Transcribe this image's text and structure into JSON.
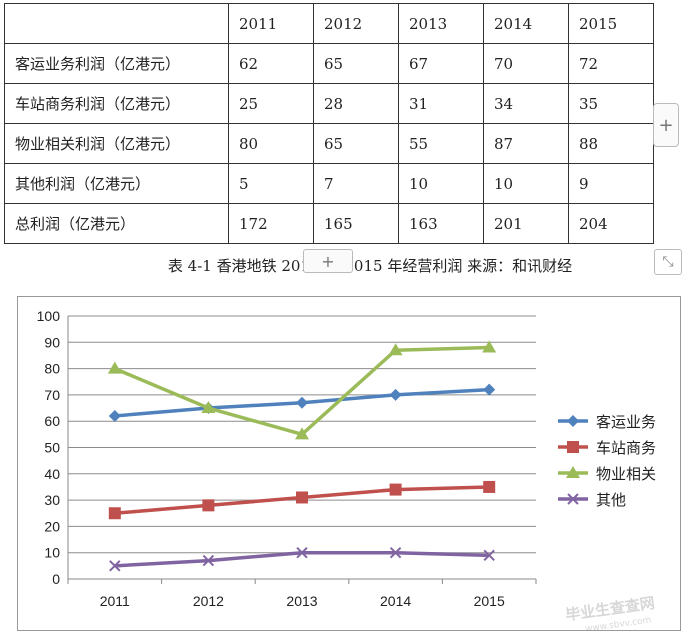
{
  "table": {
    "years": [
      "2011",
      "2012",
      "2013",
      "2014",
      "2015"
    ],
    "rows": [
      {
        "label": "客运业务利润（亿港元）",
        "values": [
          "62",
          "65",
          "67",
          "70",
          "72"
        ]
      },
      {
        "label": "车站商务利润（亿港元）",
        "values": [
          "25",
          "28",
          "31",
          "34",
          "35"
        ]
      },
      {
        "label": "物业相关利润（亿港元）",
        "values": [
          "80",
          "65",
          "55",
          "87",
          "88"
        ]
      },
      {
        "label": "其他利润（亿港元）",
        "values": [
          "5",
          "7",
          "10",
          "10",
          "9"
        ]
      },
      {
        "label": "总利润（亿港元）",
        "values": [
          "172",
          "165",
          "163",
          "201",
          "204"
        ]
      }
    ]
  },
  "caption": "表 4-1  香港地铁 2011 年-2015 年经营利润    来源：和讯财经",
  "ui": {
    "plus_symbol": "+",
    "resize_symbol": "⤡"
  },
  "watermark": {
    "line1": "毕业生查查网",
    "line2": "www.sbvv.com"
  },
  "chart_data": {
    "type": "line",
    "x": [
      "2011",
      "2012",
      "2013",
      "2014",
      "2015"
    ],
    "ylim": [
      0,
      100
    ],
    "yticks": [
      0,
      10,
      20,
      30,
      40,
      50,
      60,
      70,
      80,
      90,
      100
    ],
    "grid": true,
    "legend": "right",
    "series": [
      {
        "name": "客运业务",
        "values": [
          62,
          65,
          67,
          70,
          72
        ],
        "color": "#4f81bd",
        "marker": "diamond"
      },
      {
        "name": "车站商务",
        "values": [
          25,
          28,
          31,
          34,
          35
        ],
        "color": "#c0504d",
        "marker": "square"
      },
      {
        "name": "物业相关",
        "values": [
          80,
          65,
          55,
          87,
          88
        ],
        "color": "#9bbb59",
        "marker": "triangle"
      },
      {
        "name": "其他",
        "values": [
          5,
          7,
          10,
          10,
          9
        ],
        "color": "#8064a2",
        "marker": "x"
      }
    ]
  }
}
